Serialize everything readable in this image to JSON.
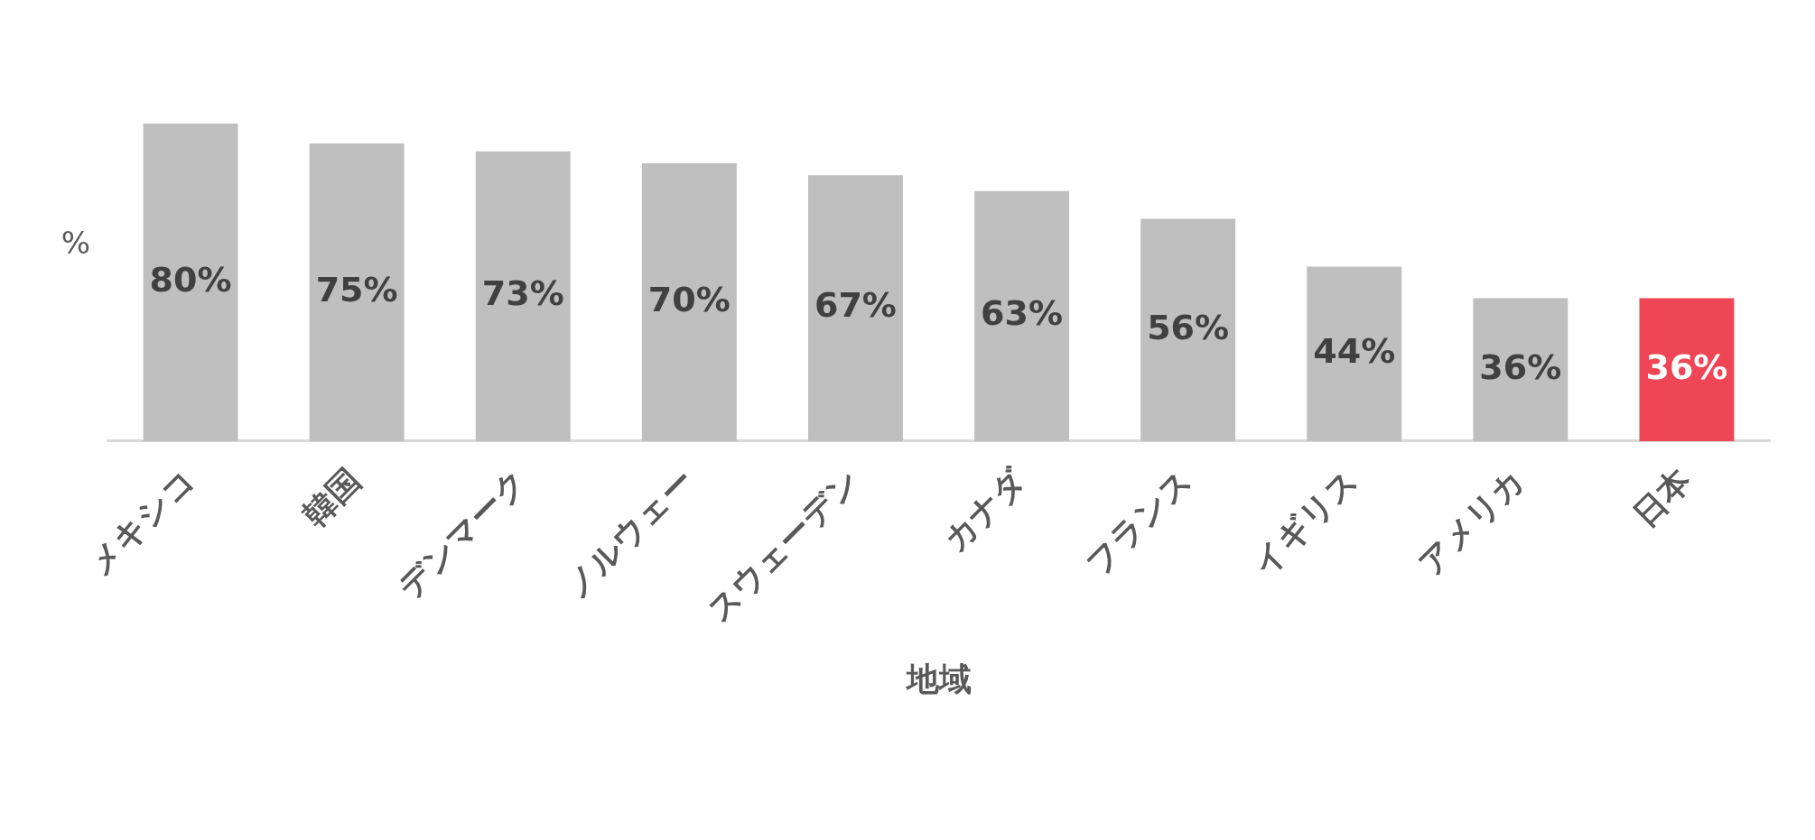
{
  "chart_data": {
    "type": "bar",
    "ylabel": "%",
    "xlabel": "地域",
    "categories": [
      "メキシコ",
      "韓国",
      "デンマーク",
      "ノルウェー",
      "スウェーデン",
      "カナダ",
      "フランス",
      "イギリス",
      "アメリカ",
      "日本"
    ],
    "values": [
      80,
      75,
      73,
      70,
      67,
      63,
      56,
      44,
      36,
      36
    ],
    "colors": [
      "#bfbfbf",
      "#bfbfbf",
      "#bfbfbf",
      "#bfbfbf",
      "#bfbfbf",
      "#bfbfbf",
      "#bfbfbf",
      "#bfbfbf",
      "#bfbfbf",
      "#ef4655"
    ],
    "value_labels": [
      "80%",
      "75%",
      "73%",
      "70%",
      "67%",
      "63%",
      "56%",
      "44%",
      "36%",
      "36%"
    ],
    "tick_labels": "x",
    "grid": false,
    "legend": false
  }
}
